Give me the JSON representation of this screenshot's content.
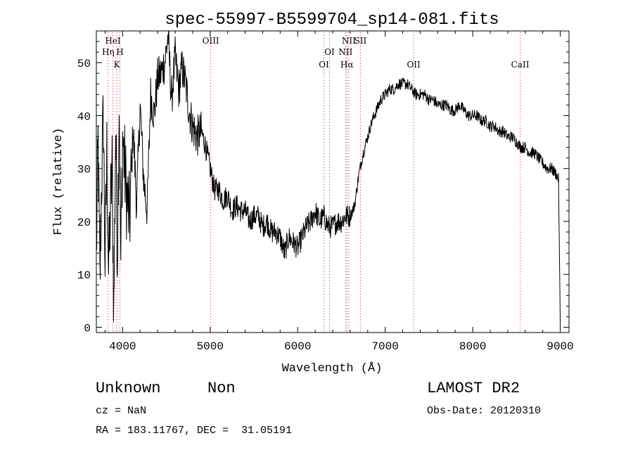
{
  "footer": {
    "class_label": "Unknown",
    "subclass_label": "Non",
    "cz": "cz = NaN",
    "coords": "RA = 183.11767, DEC =  31.05191",
    "survey": "LAMOST DR2",
    "obs_date": "Obs-Date: 20120310"
  },
  "chart_data": {
    "type": "line",
    "title": "spec-55997-B5599704_sp14-081.fits",
    "xlabel": "Wavelength (Å)",
    "ylabel": "Flux (relative)",
    "xlim": [
      3700,
      9100
    ],
    "ylim": [
      -1,
      56
    ],
    "x_ticks": [
      4000,
      5000,
      6000,
      7000,
      8000,
      9000
    ],
    "y_ticks": [
      0,
      10,
      20,
      30,
      40,
      50
    ],
    "grid": false,
    "line_color": "#000000",
    "marker_color": "#cc2222",
    "lines": [
      {
        "label": "HeI",
        "x": 3889,
        "row": 0
      },
      {
        "label": "Hη",
        "x": 3835,
        "row": 1
      },
      {
        "label": "H",
        "x": 3969,
        "row": 1
      },
      {
        "label": "K",
        "x": 3934,
        "row": 2
      },
      {
        "label": "OIII",
        "x": 5007,
        "row": 0
      },
      {
        "label": "OI",
        "x": 6364,
        "row": 1
      },
      {
        "label": "OI",
        "x": 6300,
        "row": 2
      },
      {
        "label": "NII",
        "x": 6584,
        "row": 0
      },
      {
        "label": "SII",
        "x": 6717,
        "row": 0
      },
      {
        "label": "NII",
        "x": 6548,
        "row": 1
      },
      {
        "label": "Hα",
        "x": 6563,
        "row": 2
      },
      {
        "label": "OII",
        "x": 7325,
        "row": 2
      },
      {
        "label": "CaII",
        "x": 8542,
        "row": 2
      }
    ],
    "series": [
      {
        "x": [
          3700,
          3720,
          3740,
          3760,
          3780,
          3800,
          3820,
          3840,
          3860,
          3880,
          3900,
          3920,
          3940,
          3960,
          3980,
          4000,
          4040,
          4080,
          4120,
          4160,
          4200,
          4240,
          4280,
          4320,
          4360,
          4400,
          4440,
          4480,
          4520,
          4560,
          4600,
          4640,
          4680,
          4720,
          4760,
          4800,
          4850,
          4900,
          4950,
          5000,
          5050,
          5100,
          5150,
          5200,
          5250,
          5300,
          5350,
          5400,
          5450,
          5500,
          5550,
          5600,
          5650,
          5700,
          5750,
          5800,
          5850,
          5900,
          5950,
          6000,
          6050,
          6100,
          6150,
          6200,
          6250,
          6300,
          6350,
          6400,
          6450,
          6500,
          6550,
          6600,
          6650,
          6700,
          6750,
          6800,
          6850,
          6900,
          6950,
          7000,
          7050,
          7100,
          7150,
          7200,
          7250,
          7300,
          7350,
          7400,
          7450,
          7500,
          7550,
          7600,
          7650,
          7700,
          7750,
          7800,
          7850,
          7900,
          7950,
          8000,
          8050,
          8100,
          8150,
          8200,
          8250,
          8300,
          8350,
          8400,
          8450,
          8500,
          8550,
          8600,
          8650,
          8700,
          8750,
          8800,
          8850,
          8900,
          8950,
          8980,
          9000
        ],
        "y": [
          14,
          35,
          8,
          28,
          40,
          12,
          33,
          10,
          22,
          30,
          3,
          38,
          14,
          44,
          12,
          36,
          26,
          20,
          38,
          23,
          42,
          28,
          22,
          44,
          40,
          47,
          48,
          50,
          55,
          43,
          51,
          45,
          49,
          46,
          41,
          38,
          36,
          37,
          34,
          30,
          26,
          26,
          24,
          25,
          22,
          23,
          22,
          22,
          20,
          21,
          21,
          19,
          20,
          18,
          18,
          17,
          14,
          17,
          16,
          15,
          17,
          19,
          20,
          22,
          20,
          21,
          19,
          19,
          20,
          20,
          21,
          21,
          23,
          29,
          33,
          36,
          39,
          41,
          43,
          44,
          45,
          45,
          46,
          46,
          46,
          45,
          44,
          44,
          44,
          43,
          43,
          42,
          42,
          42,
          41,
          41,
          42,
          41,
          40,
          40,
          40,
          39,
          39,
          38,
          38,
          37,
          37,
          36,
          36,
          35,
          34,
          34,
          33,
          33,
          32,
          31,
          30,
          30,
          29,
          28,
          0
        ]
      }
    ]
  }
}
